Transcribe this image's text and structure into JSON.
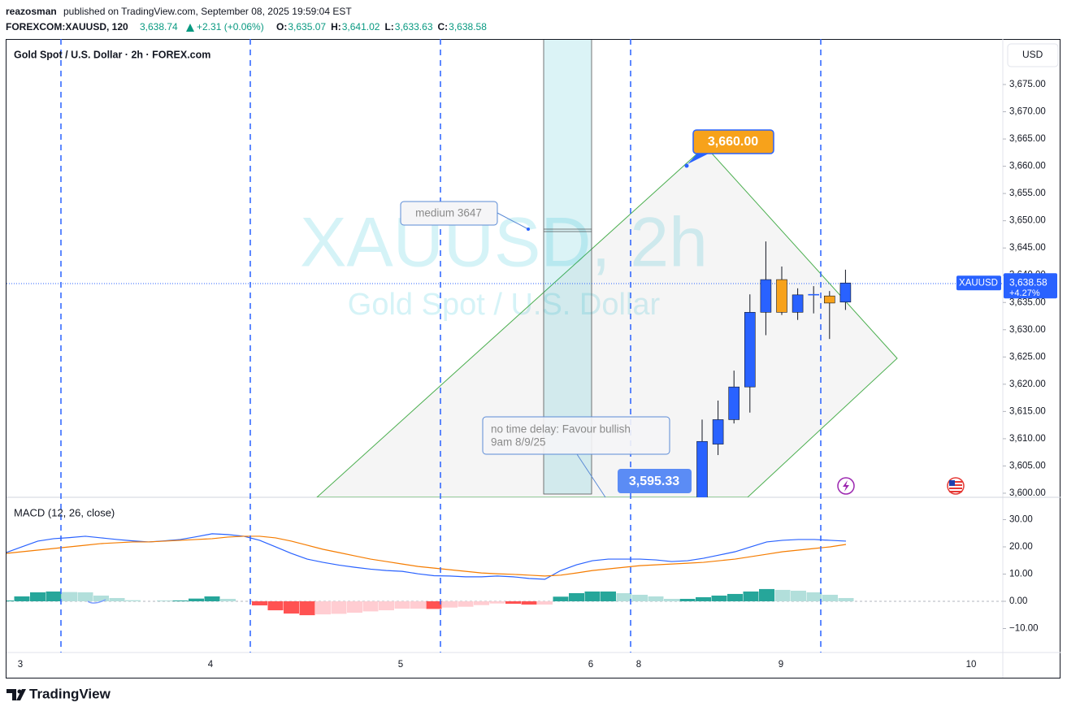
{
  "header": {
    "author": "reazosman",
    "published": "published on TradingView.com, September 08, 2025 19:59:04 EST",
    "symbol": "FOREXCOM:XAUUSD, 120",
    "price": "3,638.74",
    "change": "+2.31 (+0.06%)",
    "ohlc": [
      {
        "key": "O:",
        "value": "3,635.07"
      },
      {
        "key": "H:",
        "value": "3,641.02"
      },
      {
        "key": "L:",
        "value": "3,633.63"
      },
      {
        "key": "C:",
        "value": "3,638.58"
      }
    ]
  },
  "chart_data": {
    "type": "candlestick",
    "title": "Gold Spot / U.S. Dollar · 2h · FOREX.com",
    "watermark": "XAUUSD, 2h",
    "watermark_subtitle": "Gold Spot / U.S. Dollar",
    "currency": "USD",
    "x_labels": [
      "3",
      "4",
      "5",
      "6",
      "8",
      "9",
      "10"
    ],
    "open": [
      3598,
      3609,
      3613.5,
      3619.5,
      3633.2,
      3639.2,
      3633.2,
      3636.4,
      3636.2,
      3635.07
    ],
    "high": [
      3613.5,
      3617,
      3622.5,
      3636.5,
      3646.2,
      3641.6,
      3637.6,
      3638,
      3637.1,
      3641.02
    ],
    "low": [
      3595,
      3607,
      3612.8,
      3614.8,
      3629,
      3632.7,
      3631.8,
      3633,
      3628.3,
      3633.63
    ],
    "close": [
      3609.5,
      3613.5,
      3619.5,
      3633.2,
      3639.2,
      3633.2,
      3636.4,
      3636.5,
      3634.9,
      3638.58
    ],
    "up_color": "#2962ff",
    "down_color": "#f7a21b",
    "ylim": [
      3599.25,
      3683.35
    ],
    "yticks": [
      {
        "value": 3600,
        "label": "3,600.00"
      },
      {
        "value": 3605,
        "label": "3,605.00"
      },
      {
        "value": 3610,
        "label": "3,610.00"
      },
      {
        "value": 3615,
        "label": "3,615.00"
      },
      {
        "value": 3620,
        "label": "3,620.00"
      },
      {
        "value": 3625,
        "label": "3,625.00"
      },
      {
        "value": 3630,
        "label": "3,630.00"
      },
      {
        "value": 3635,
        "label": "3,635.00"
      },
      {
        "value": 3640,
        "label": "3,640.00"
      },
      {
        "value": 3645,
        "label": "3,645.00"
      },
      {
        "value": 3650,
        "label": "3,650.00"
      },
      {
        "value": 3655,
        "label": "3,655.00"
      },
      {
        "value": 3660,
        "label": "3,660.00"
      },
      {
        "value": 3665,
        "label": "3,665.00"
      },
      {
        "value": 3670,
        "label": "3,670.00"
      },
      {
        "value": 3675,
        "label": "3,675.00"
      }
    ],
    "last_price": {
      "symbol": "XAUUSD",
      "label": "3,638.58",
      "change": "+4.27%"
    },
    "annotations": {
      "target": "3,660.00",
      "medium": "medium 3647",
      "note": [
        "no time delay: Favour bullish",
        "9am 8/9/25"
      ],
      "low": "3,595.33"
    },
    "macd": {
      "title": "MACD (12, 26, close)",
      "ylim": [
        -18.8,
        38.2
      ],
      "yticks": [
        {
          "value": 30,
          "label": "30.00"
        },
        {
          "value": 20,
          "label": "20.00"
        },
        {
          "value": 10,
          "label": "10.00"
        },
        {
          "value": 0,
          "label": "0.00"
        },
        {
          "value": -10,
          "label": "−10.00"
        }
      ],
      "series": [
        {
          "color": "#2962ff",
          "values": [
            17.9,
            20.0,
            22.1,
            23.0,
            23.4,
            23.9,
            23.3,
            22.7,
            22.2,
            21.8,
            22.2,
            22.7,
            23.7,
            24.8,
            24.5,
            23.9,
            22.4,
            20.0,
            17.6,
            15.5,
            14.3,
            13.3,
            12.5,
            11.8,
            11.3,
            11.0,
            10.1,
            9.4,
            9.3,
            9.0,
            9.0,
            9.3,
            9.0,
            8.4,
            8.1,
            11.3,
            13.4,
            14.9,
            15.5,
            15.5,
            15.5,
            15.2,
            14.6,
            14.9,
            15.8,
            17.0,
            18.2,
            20.0,
            21.8,
            22.4,
            22.7,
            22.7,
            22.4,
            22.1
          ]
        },
        {
          "color": "#f57c00",
          "values": [
            17.6,
            18.2,
            18.8,
            19.4,
            20.0,
            20.6,
            21.2,
            21.5,
            21.8,
            21.8,
            22.1,
            22.4,
            22.7,
            23.0,
            23.6,
            23.9,
            23.9,
            23.3,
            22.1,
            20.6,
            19.1,
            17.9,
            16.7,
            15.5,
            14.6,
            13.7,
            12.8,
            12.2,
            11.6,
            11.0,
            10.4,
            10.1,
            9.9,
            9.6,
            9.3,
            9.6,
            10.4,
            11.3,
            11.9,
            12.5,
            13.1,
            13.4,
            13.7,
            14.0,
            14.3,
            14.9,
            15.5,
            16.4,
            17.3,
            18.2,
            18.8,
            19.4,
            20.0,
            20.9
          ]
        }
      ],
      "histogram": [
        0.3,
        1.8,
        3.3,
        3.6,
        3.4,
        3.3,
        2.1,
        1.2,
        0.4,
        0.0,
        0.1,
        0.3,
        1.0,
        1.8,
        0.9,
        0.0,
        -1.5,
        -3.3,
        -4.5,
        -5.1,
        -4.8,
        -4.6,
        -4.2,
        -3.7,
        -3.3,
        -2.7,
        -2.7,
        -2.8,
        -2.3,
        -2.0,
        -1.4,
        -0.8,
        -0.9,
        -1.2,
        -1.2,
        1.7,
        3.0,
        3.6,
        3.6,
        3.0,
        2.4,
        1.8,
        0.9,
        0.9,
        1.5,
        2.1,
        2.7,
        3.6,
        4.5,
        4.2,
        3.9,
        3.3,
        2.4,
        1.2
      ],
      "histogram_colors": [
        "#26a69a",
        "#b2dfdb",
        "#ff5252",
        "#ffcdd2"
      ]
    }
  },
  "footer": {
    "brand": "TradingView"
  }
}
